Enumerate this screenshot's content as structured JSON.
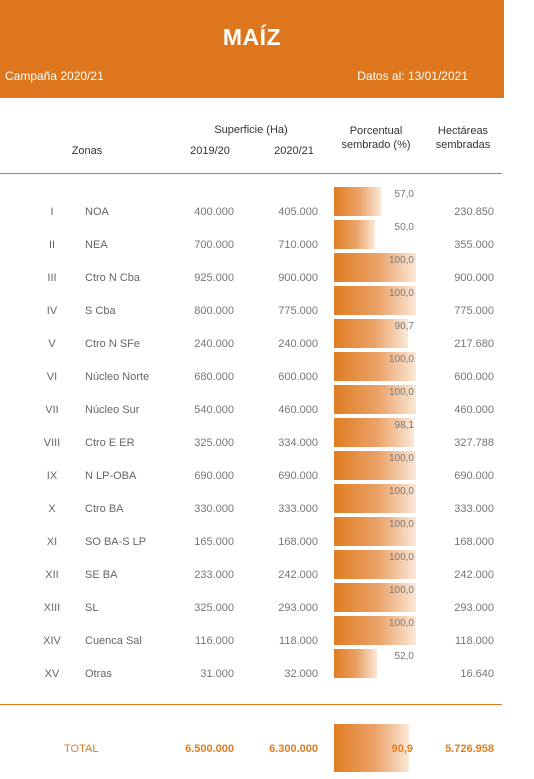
{
  "header": {
    "title": "MAÍZ",
    "campaign": "Campaña 2020/21",
    "date": "Datos al: 13/01/2021"
  },
  "columns": {
    "zonas": "Zonas",
    "superficie": "Superficie (Ha)",
    "year1": "2019/20",
    "year2": "2020/21",
    "porcentual_1": "Porcentual",
    "porcentual_2": "sembrado (%)",
    "hectareas_1": "Hectáreas",
    "hectareas_2": "sembradas"
  },
  "colors": {
    "accent": "#dd761c",
    "bar_start": "#e07d22",
    "bar_end": "#fbe8d8"
  },
  "rows": [
    {
      "roman": "I",
      "zone": "NOA",
      "s19": "400.000",
      "s20": "405.000",
      "pct": "57,0",
      "pct_value": 57.0,
      "hect": "230.850"
    },
    {
      "roman": "II",
      "zone": "NEA",
      "s19": "700.000",
      "s20": "710.000",
      "pct": "50,0",
      "pct_value": 50.0,
      "hect": "355.000"
    },
    {
      "roman": "III",
      "zone": "Ctro N Cba",
      "s19": "925.000",
      "s20": "900.000",
      "pct": "100,0",
      "pct_value": 100.0,
      "hect": "900.000"
    },
    {
      "roman": "IV",
      "zone": "S Cba",
      "s19": "800.000",
      "s20": "775.000",
      "pct": "100,0",
      "pct_value": 100.0,
      "hect": "775.000"
    },
    {
      "roman": "V",
      "zone": "Ctro N SFe",
      "s19": "240.000",
      "s20": "240.000",
      "pct": "90,7",
      "pct_value": 90.7,
      "hect": "217.680"
    },
    {
      "roman": "VI",
      "zone": "Núcleo Norte",
      "s19": "680.000",
      "s20": "600.000",
      "pct": "100,0",
      "pct_value": 100.0,
      "hect": "600.000"
    },
    {
      "roman": "VII",
      "zone": "Núcleo Sur",
      "s19": "540.000",
      "s20": "460.000",
      "pct": "100,0",
      "pct_value": 100.0,
      "hect": "460.000"
    },
    {
      "roman": "VIII",
      "zone": "Ctro E ER",
      "s19": "325.000",
      "s20": "334.000",
      "pct": "98,1",
      "pct_value": 98.1,
      "hect": "327.788"
    },
    {
      "roman": "IX",
      "zone": "N LP-OBA",
      "s19": "690.000",
      "s20": "690.000",
      "pct": "100,0",
      "pct_value": 100.0,
      "hect": "690.000"
    },
    {
      "roman": "X",
      "zone": "Ctro BA",
      "s19": "330.000",
      "s20": "333.000",
      "pct": "100,0",
      "pct_value": 100.0,
      "hect": "333.000"
    },
    {
      "roman": "XI",
      "zone": "SO BA-S LP",
      "s19": "165.000",
      "s20": "168.000",
      "pct": "100,0",
      "pct_value": 100.0,
      "hect": "168.000"
    },
    {
      "roman": "XII",
      "zone": "SE BA",
      "s19": "233.000",
      "s20": "242.000",
      "pct": "100,0",
      "pct_value": 100.0,
      "hect": "242.000"
    },
    {
      "roman": "XIII",
      "zone": "SL",
      "s19": "325.000",
      "s20": "293.000",
      "pct": "100,0",
      "pct_value": 100.0,
      "hect": "293.000"
    },
    {
      "roman": "XIV",
      "zone": "Cuenca Sal",
      "s19": "116.000",
      "s20": "118.000",
      "pct": "100,0",
      "pct_value": 100.0,
      "hect": "118.000"
    },
    {
      "roman": "XV",
      "zone": "Otras",
      "s19": "31.000",
      "s20": "32.000",
      "pct": "52,0",
      "pct_value": 52.0,
      "hect": "16.640"
    }
  ],
  "total": {
    "label": "TOTAL",
    "s19": "6.500.000",
    "s20": "6.300.000",
    "pct": "90,9",
    "pct_value": 90.9,
    "hect": "5.726.958"
  }
}
